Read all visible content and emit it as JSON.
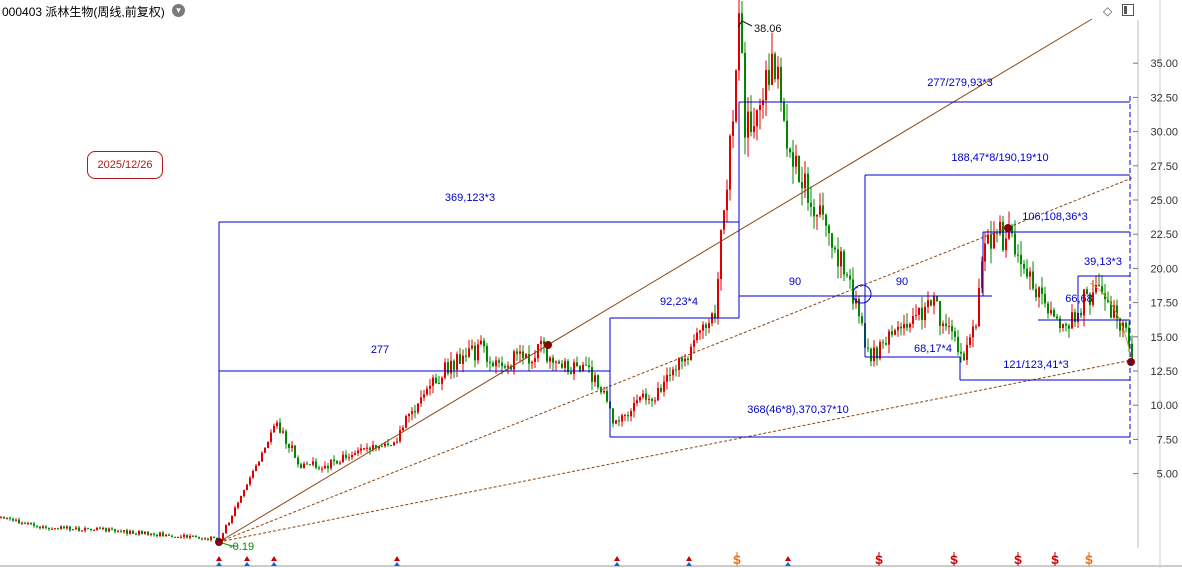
{
  "header": {
    "title": "000403 派林生物(周线,前复权)",
    "menu_icon": "chevron-down-icon",
    "right_icons": [
      "diamond-icon",
      "panel-toggle-icon"
    ]
  },
  "date_badge": "2025/12/26",
  "colors": {
    "up": "#e00000",
    "down": "#008800",
    "measure": "#0000cc",
    "trend": "#8b4513",
    "pivot": "#8b0000",
    "signal_buy": "#cc0000",
    "signal_s": "#e07020"
  },
  "chart_data": {
    "type": "candlestick",
    "title": "000403 派林生物(周线,前复权)",
    "y_axis": {
      "ticks": [
        5.0,
        7.5,
        10.0,
        12.5,
        15.0,
        17.5,
        20.0,
        22.5,
        25.0,
        27.5,
        30.0,
        32.5,
        35.0
      ],
      "tick_labels": [
        "5.00",
        "7.50",
        "10.00",
        "12.50",
        "15.00",
        "17.50",
        "20.00",
        "22.50",
        "25.00",
        "27.50",
        "30.00",
        "32.50",
        "35.00"
      ],
      "position": "right",
      "grid": false
    },
    "price_points": {
      "high_label": "38.06",
      "low_label": "0.19"
    },
    "measure_annotations": [
      {
        "text": "277/279,93*3",
        "level": 32.2
      },
      {
        "text": "188,47*8/190,19*10",
        "level": 26.9
      },
      {
        "text": "369,123*3",
        "level": 23.4
      },
      {
        "text": "106,108,36*3",
        "level": 22.7
      },
      {
        "text": "39,13*3",
        "level": 19.3
      },
      {
        "text": "90",
        "level": 18.0
      },
      {
        "text": "90",
        "level": 18.0
      },
      {
        "text": "66,68",
        "level": 16.1
      },
      {
        "text": "92,23*4",
        "level": 16.3
      },
      {
        "text": "68,17*4",
        "level": 13.5
      },
      {
        "text": "277",
        "level": 12.6
      },
      {
        "text": "121/123,41*3",
        "level": 11.9
      },
      {
        "text": "368(46*8),370,37*10",
        "level": 7.6
      }
    ],
    "signals": [
      "buy",
      "buy",
      "buy",
      "buy",
      "buy",
      "buy",
      "S",
      "buy",
      "S",
      "S",
      "S",
      "S",
      "S"
    ]
  }
}
